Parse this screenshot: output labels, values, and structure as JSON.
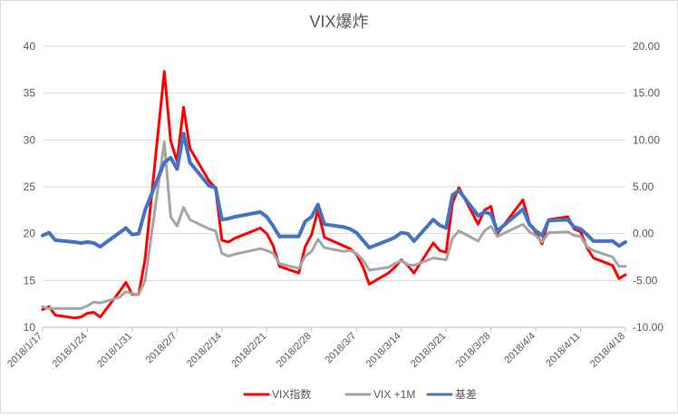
{
  "chart_data": {
    "type": "line",
    "title": "VIX爆炸",
    "xlabel": "",
    "ylabel": "",
    "x_ticks": [
      "2018/1/17",
      "2018/1/24",
      "2018/1/31",
      "2018/2/7",
      "2018/2/14",
      "2018/2/21",
      "2018/2/28",
      "2018/3/7",
      "2018/3/14",
      "2018/3/21",
      "2018/3/28",
      "2018/4/4",
      "2018/4/11",
      "2018/4/18"
    ],
    "x_range": [
      "2018/1/17",
      "2018/4/18"
    ],
    "y_left": {
      "range": [
        10,
        40
      ],
      "ticks": [
        "10",
        "15",
        "20",
        "25",
        "30",
        "35",
        "40"
      ]
    },
    "y_right": {
      "range": [
        -10,
        20
      ],
      "ticks": [
        "-10.00",
        "-5.00",
        "0.00",
        "5.00",
        "10.00",
        "15.00",
        "20.00"
      ]
    },
    "grid": true,
    "legend_position": "bottom",
    "legend": [
      "VIX指数",
      "VIX +1M",
      "基差"
    ],
    "series": [
      {
        "name": "VIX指数",
        "axis": "left",
        "color": "#ff0000",
        "points": [
          [
            "2018/1/17",
            11.9
          ],
          [
            "2018/1/18",
            12.2
          ],
          [
            "2018/1/19",
            11.3
          ],
          [
            "2018/1/22",
            11.0
          ],
          [
            "2018/1/23",
            11.1
          ],
          [
            "2018/1/24",
            11.5
          ],
          [
            "2018/1/25",
            11.6
          ],
          [
            "2018/1/26",
            11.1
          ],
          [
            "2018/1/29",
            13.8
          ],
          [
            "2018/1/30",
            14.8
          ],
          [
            "2018/1/31",
            13.5
          ],
          [
            "2018/2/1",
            13.5
          ],
          [
            "2018/2/2",
            17.3
          ],
          [
            "2018/2/5",
            37.3
          ],
          [
            "2018/2/6",
            29.9
          ],
          [
            "2018/2/7",
            27.7
          ],
          [
            "2018/2/8",
            33.5
          ],
          [
            "2018/2/9",
            29.1
          ],
          [
            "2018/2/12",
            25.6
          ],
          [
            "2018/2/13",
            24.9
          ],
          [
            "2018/2/14",
            19.3
          ],
          [
            "2018/2/15",
            19.1
          ],
          [
            "2018/2/16",
            19.5
          ],
          [
            "2018/2/20",
            20.6
          ],
          [
            "2018/2/21",
            20.0
          ],
          [
            "2018/2/22",
            18.7
          ],
          [
            "2018/2/23",
            16.5
          ],
          [
            "2018/2/26",
            15.8
          ],
          [
            "2018/2/27",
            18.6
          ],
          [
            "2018/2/28",
            19.9
          ],
          [
            "2018/3/1",
            22.5
          ],
          [
            "2018/3/2",
            19.6
          ],
          [
            "2018/3/5",
            18.7
          ],
          [
            "2018/3/6",
            18.4
          ],
          [
            "2018/3/7",
            17.8
          ],
          [
            "2018/3/8",
            16.5
          ],
          [
            "2018/3/9",
            14.6
          ],
          [
            "2018/3/12",
            15.8
          ],
          [
            "2018/3/13",
            16.4
          ],
          [
            "2018/3/14",
            17.2
          ],
          [
            "2018/3/15",
            16.6
          ],
          [
            "2018/3/16",
            15.8
          ],
          [
            "2018/3/19",
            19.0
          ],
          [
            "2018/3/20",
            18.2
          ],
          [
            "2018/3/21",
            18.0
          ],
          [
            "2018/3/22",
            23.3
          ],
          [
            "2018/3/23",
            24.9
          ],
          [
            "2018/3/26",
            21.0
          ],
          [
            "2018/3/27",
            22.5
          ],
          [
            "2018/3/28",
            22.9
          ],
          [
            "2018/3/29",
            20.0
          ],
          [
            "2018/4/2",
            23.6
          ],
          [
            "2018/4/3",
            21.1
          ],
          [
            "2018/4/4",
            20.1
          ],
          [
            "2018/4/5",
            18.9
          ],
          [
            "2018/4/6",
            21.5
          ],
          [
            "2018/4/9",
            21.8
          ],
          [
            "2018/4/10",
            20.5
          ],
          [
            "2018/4/11",
            20.2
          ],
          [
            "2018/4/12",
            18.5
          ],
          [
            "2018/4/13",
            17.4
          ],
          [
            "2018/4/16",
            16.6
          ],
          [
            "2018/4/17",
            15.2
          ],
          [
            "2018/4/18",
            15.6
          ]
        ]
      },
      {
        "name": "VIX +1M",
        "axis": "left",
        "color": "#a5a5a5",
        "points": [
          [
            "2018/1/17",
            12.2
          ],
          [
            "2018/1/18",
            12.0
          ],
          [
            "2018/1/19",
            12.0
          ],
          [
            "2018/1/22",
            12.0
          ],
          [
            "2018/1/23",
            12.0
          ],
          [
            "2018/1/24",
            12.3
          ],
          [
            "2018/1/25",
            12.7
          ],
          [
            "2018/1/26",
            12.6
          ],
          [
            "2018/1/29",
            13.2
          ],
          [
            "2018/1/30",
            13.8
          ],
          [
            "2018/1/31",
            13.6
          ],
          [
            "2018/2/1",
            13.5
          ],
          [
            "2018/2/2",
            15.0
          ],
          [
            "2018/2/5",
            29.8
          ],
          [
            "2018/2/6",
            21.8
          ],
          [
            "2018/2/7",
            20.8
          ],
          [
            "2018/2/8",
            22.8
          ],
          [
            "2018/2/9",
            21.5
          ],
          [
            "2018/2/12",
            20.5
          ],
          [
            "2018/2/13",
            20.3
          ],
          [
            "2018/2/14",
            17.9
          ],
          [
            "2018/2/15",
            17.6
          ],
          [
            "2018/2/16",
            17.8
          ],
          [
            "2018/2/20",
            18.4
          ],
          [
            "2018/2/21",
            18.2
          ],
          [
            "2018/2/22",
            17.9
          ],
          [
            "2018/2/23",
            16.8
          ],
          [
            "2018/2/26",
            16.3
          ],
          [
            "2018/2/27",
            17.6
          ],
          [
            "2018/2/28",
            18.1
          ],
          [
            "2018/3/1",
            19.4
          ],
          [
            "2018/3/2",
            18.5
          ],
          [
            "2018/3/5",
            18.1
          ],
          [
            "2018/3/6",
            18.2
          ],
          [
            "2018/3/7",
            17.9
          ],
          [
            "2018/3/8",
            17.2
          ],
          [
            "2018/3/9",
            16.1
          ],
          [
            "2018/3/12",
            16.4
          ],
          [
            "2018/3/13",
            16.8
          ],
          [
            "2018/3/14",
            17.1
          ],
          [
            "2018/3/15",
            16.7
          ],
          [
            "2018/3/16",
            16.6
          ],
          [
            "2018/3/19",
            17.4
          ],
          [
            "2018/3/20",
            17.3
          ],
          [
            "2018/3/21",
            17.2
          ],
          [
            "2018/3/22",
            19.5
          ],
          [
            "2018/3/23",
            20.3
          ],
          [
            "2018/3/26",
            19.2
          ],
          [
            "2018/3/27",
            20.3
          ],
          [
            "2018/3/28",
            20.8
          ],
          [
            "2018/3/29",
            19.7
          ],
          [
            "2018/4/2",
            21.0
          ],
          [
            "2018/4/3",
            20.2
          ],
          [
            "2018/4/4",
            19.8
          ],
          [
            "2018/4/5",
            19.1
          ],
          [
            "2018/4/6",
            20.1
          ],
          [
            "2018/4/9",
            20.2
          ],
          [
            "2018/4/10",
            19.8
          ],
          [
            "2018/4/11",
            19.7
          ],
          [
            "2018/4/12",
            18.6
          ],
          [
            "2018/4/13",
            18.2
          ],
          [
            "2018/4/16",
            17.5
          ],
          [
            "2018/4/17",
            16.5
          ],
          [
            "2018/4/18",
            16.5
          ]
        ]
      },
      {
        "name": "基差",
        "axis": "right",
        "color": "#4472c4",
        "points": [
          [
            "2018/1/17",
            -0.2
          ],
          [
            "2018/1/18",
            0.1
          ],
          [
            "2018/1/19",
            -0.7
          ],
          [
            "2018/1/22",
            -0.9
          ],
          [
            "2018/1/23",
            -1.0
          ],
          [
            "2018/1/24",
            -0.9
          ],
          [
            "2018/1/25",
            -1.0
          ],
          [
            "2018/1/26",
            -1.4
          ],
          [
            "2018/1/29",
            0.1
          ],
          [
            "2018/1/30",
            0.6
          ],
          [
            "2018/1/31",
            -0.1
          ],
          [
            "2018/2/1",
            0.0
          ],
          [
            "2018/2/2",
            2.5
          ],
          [
            "2018/2/5",
            7.6
          ],
          [
            "2018/2/6",
            8.1
          ],
          [
            "2018/2/7",
            6.9
          ],
          [
            "2018/2/8",
            10.7
          ],
          [
            "2018/2/9",
            7.6
          ],
          [
            "2018/2/12",
            5.1
          ],
          [
            "2018/2/13",
            4.9
          ],
          [
            "2018/2/14",
            1.5
          ],
          [
            "2018/2/15",
            1.6
          ],
          [
            "2018/2/16",
            1.8
          ],
          [
            "2018/2/20",
            2.3
          ],
          [
            "2018/2/21",
            1.8
          ],
          [
            "2018/2/22",
            0.8
          ],
          [
            "2018/2/23",
            -0.3
          ],
          [
            "2018/2/26",
            -0.3
          ],
          [
            "2018/2/27",
            1.3
          ],
          [
            "2018/2/28",
            1.8
          ],
          [
            "2018/3/1",
            3.1
          ],
          [
            "2018/3/2",
            1.0
          ],
          [
            "2018/3/5",
            0.7
          ],
          [
            "2018/3/6",
            0.5
          ],
          [
            "2018/3/7",
            0.1
          ],
          [
            "2018/3/8",
            -0.7
          ],
          [
            "2018/3/9",
            -1.5
          ],
          [
            "2018/3/12",
            -0.7
          ],
          [
            "2018/3/13",
            -0.4
          ],
          [
            "2018/3/14",
            0.1
          ],
          [
            "2018/3/15",
            0.0
          ],
          [
            "2018/3/16",
            -0.8
          ],
          [
            "2018/3/19",
            1.5
          ],
          [
            "2018/3/20",
            0.9
          ],
          [
            "2018/3/21",
            0.6
          ],
          [
            "2018/3/22",
            4.1
          ],
          [
            "2018/3/23",
            4.6
          ],
          [
            "2018/3/26",
            1.9
          ],
          [
            "2018/3/27",
            2.3
          ],
          [
            "2018/3/28",
            2.1
          ],
          [
            "2018/3/29",
            0.3
          ],
          [
            "2018/4/2",
            2.6
          ],
          [
            "2018/4/3",
            1.0
          ],
          [
            "2018/4/4",
            0.3
          ],
          [
            "2018/4/5",
            -0.2
          ],
          [
            "2018/4/6",
            1.4
          ],
          [
            "2018/4/9",
            1.5
          ],
          [
            "2018/4/10",
            0.7
          ],
          [
            "2018/4/11",
            0.5
          ],
          [
            "2018/4/12",
            -0.1
          ],
          [
            "2018/4/13",
            -0.8
          ],
          [
            "2018/4/16",
            -0.8
          ],
          [
            "2018/4/17",
            -1.3
          ],
          [
            "2018/4/18",
            -0.9
          ]
        ]
      }
    ]
  }
}
